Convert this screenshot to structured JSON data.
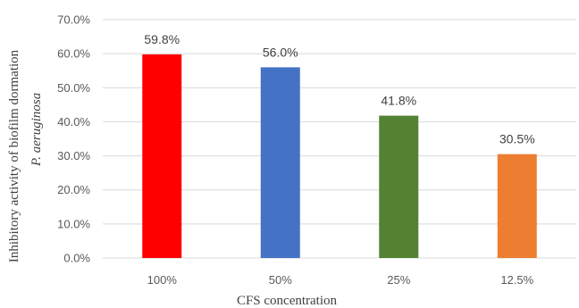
{
  "chart_data": {
    "type": "bar",
    "categories": [
      "100%",
      "50%",
      "25%",
      "12.5%"
    ],
    "values": [
      59.8,
      56.0,
      41.8,
      30.5
    ],
    "data_labels": [
      "59.8%",
      "56.0%",
      "41.8%",
      "30.5%"
    ],
    "bar_colors": [
      "#ff0000",
      "#4472c4",
      "#548235",
      "#ed7d31"
    ],
    "xlabel": "CFS concentration",
    "ylabel_line1": "Inhibitory activity of biofilm dormation",
    "ylabel_line2": "P. aeruginosa",
    "ylim": [
      0,
      70
    ],
    "yticks": [
      0,
      10,
      20,
      30,
      40,
      50,
      60,
      70
    ],
    "ytick_labels": [
      "0.0%",
      "10.0%",
      "20.0%",
      "30.0%",
      "40.0%",
      "50.0%",
      "60.0%",
      "70.0%"
    ],
    "grid": true,
    "legend": "none"
  }
}
